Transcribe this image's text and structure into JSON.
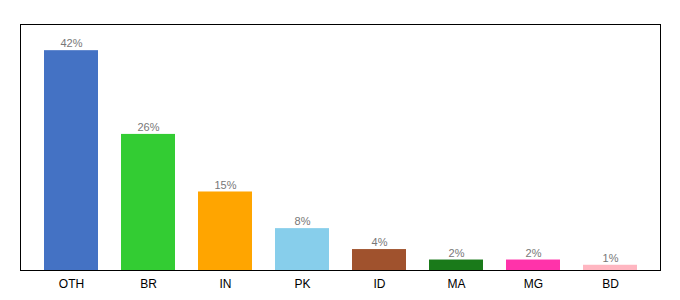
{
  "chart_data": {
    "type": "bar",
    "categories": [
      "OTH",
      "BR",
      "IN",
      "PK",
      "ID",
      "MA",
      "MG",
      "BD"
    ],
    "values": [
      42,
      26,
      15,
      8,
      4,
      2,
      2,
      1
    ],
    "value_labels": [
      "42%",
      "26%",
      "15%",
      "8%",
      "4%",
      "2%",
      "2%",
      "1%"
    ],
    "colors": [
      "#4472C4",
      "#33CC33",
      "#FFA500",
      "#87CEEB",
      "#A0522D",
      "#1A7A1A",
      "#FF33AA",
      "#FFB6C1"
    ],
    "ylim": [
      0,
      47
    ],
    "data_labels": true,
    "tick_labels": "x",
    "grid": false
  }
}
